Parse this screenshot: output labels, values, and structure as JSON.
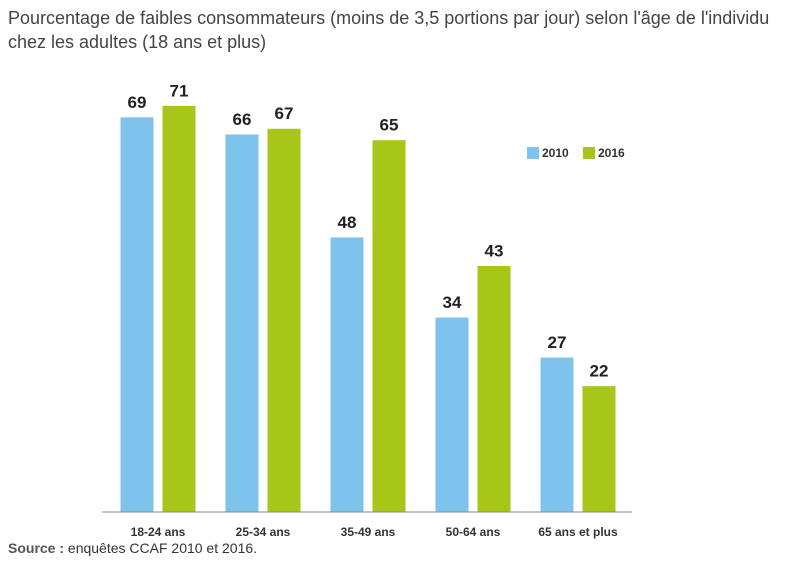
{
  "chart_data": {
    "type": "bar",
    "title": "Pourcentage de faibles consommateurs (moins de 3,5 portions par jour) selon l'âge de l'individu chez les adultes (18 ans et plus)",
    "categories": [
      "18-24 ans",
      "25-34 ans",
      "35-49 ans",
      "50-64 ans",
      "65 ans et plus"
    ],
    "series": [
      {
        "name": "2010",
        "color": "#7dc3eb",
        "values": [
          69,
          66,
          48,
          34,
          27
        ]
      },
      {
        "name": "2016",
        "color": "#a8c618",
        "values": [
          71,
          67,
          65,
          43,
          22
        ]
      }
    ],
    "ylim": [
      0,
      75
    ],
    "source": {
      "label": "Source :",
      "text": "enquêtes CCAF 2010 et 2016."
    }
  }
}
